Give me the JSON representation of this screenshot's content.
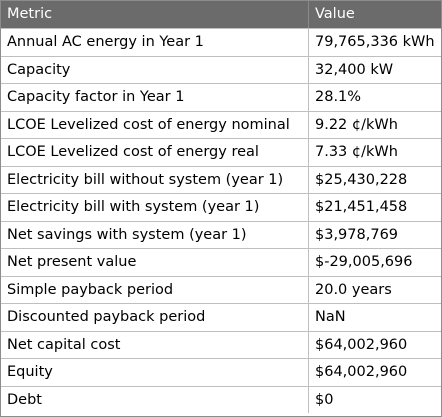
{
  "table": {
    "columns": [
      "Metric",
      "Value"
    ],
    "rows": [
      {
        "metric": "Annual AC energy in Year 1",
        "value": "79,765,336 kWh"
      },
      {
        "metric": "Capacity",
        "value": "32,400 kW"
      },
      {
        "metric": "Capacity factor in Year 1",
        "value": "28.1%"
      },
      {
        "metric": "LCOE Levelized cost of energy nominal",
        "value": "9.22 ¢/kWh"
      },
      {
        "metric": "LCOE Levelized cost of energy real",
        "value": "7.33 ¢/kWh"
      },
      {
        "metric": "Electricity bill without system (year 1)",
        "value": "$25,430,228"
      },
      {
        "metric": "Electricity bill with system (year 1)",
        "value": "$21,451,458"
      },
      {
        "metric": "Net savings with system (year 1)",
        "value": "$3,978,769"
      },
      {
        "metric": "Net present value",
        "value": "$-29,005,696"
      },
      {
        "metric": "Simple payback period",
        "value": "20.0 years"
      },
      {
        "metric": "Discounted payback period",
        "value": "NaN"
      },
      {
        "metric": "Net capital cost",
        "value": "$64,002,960"
      },
      {
        "metric": "Equity",
        "value": "$64,002,960"
      },
      {
        "metric": "Debt",
        "value": "$0"
      }
    ]
  }
}
